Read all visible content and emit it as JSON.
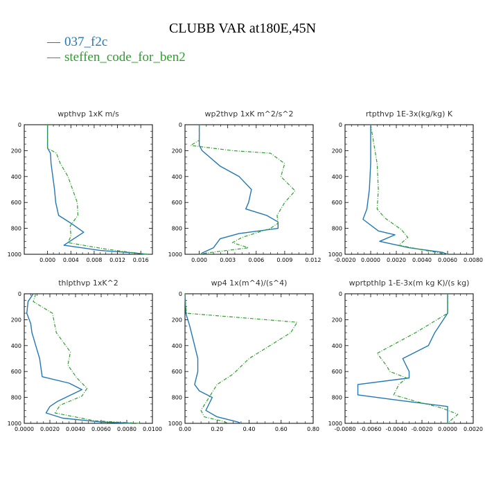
{
  "title": "CLUBB VAR at180E,45N",
  "legend": [
    {
      "label": "037_f2c",
      "color": "#1f77b4"
    },
    {
      "label": "steffen_code_for_ben2",
      "color": "#2ca02c"
    }
  ],
  "chart_data": [
    {
      "type": "line",
      "title": "wpthvp  1xK m/s",
      "xlim": [
        -0.004,
        0.018
      ],
      "ylim": [
        0,
        1000
      ],
      "y_inverted": true,
      "xticks": [
        0.0,
        0.004,
        0.008,
        0.012,
        0.016
      ],
      "xtick_labels": [
        "0.000",
        "0.004",
        "0.008",
        "0.012",
        "0.016"
      ],
      "yticks": [
        0,
        200,
        400,
        600,
        800,
        1000
      ],
      "ytick_labels": [
        "0",
        "200",
        "400",
        "600",
        "800",
        "1000"
      ],
      "series": [
        {
          "name": "037_f2c",
          "points": [
            [
              0.0,
              0
            ],
            [
              0.0,
              180
            ],
            [
              0.0005,
              220
            ],
            [
              0.0006,
              300
            ],
            [
              0.0009,
              400
            ],
            [
              0.0012,
              500
            ],
            [
              0.0014,
              600
            ],
            [
              0.0019,
              700
            ],
            [
              0.004,
              760
            ],
            [
              0.0062,
              830
            ],
            [
              0.0045,
              880
            ],
            [
              0.0028,
              930
            ],
            [
              0.009,
              970
            ],
            [
              0.015,
              990
            ],
            [
              0.017,
              1000
            ]
          ]
        },
        {
          "name": "steffen_code_for_ben2",
          "points": [
            [
              0.0,
              0
            ],
            [
              0.0,
              180
            ],
            [
              0.0015,
              220
            ],
            [
              0.0022,
              300
            ],
            [
              0.0035,
              400
            ],
            [
              0.0043,
              500
            ],
            [
              0.0051,
              600
            ],
            [
              0.0052,
              700
            ],
            [
              0.0039,
              780
            ],
            [
              0.004,
              860
            ],
            [
              0.0035,
              910
            ],
            [
              0.01,
              960
            ],
            [
              0.016,
              995
            ],
            [
              0.0175,
              1000
            ]
          ]
        }
      ]
    },
    {
      "type": "line",
      "title": "wp2thvp  1xK m^2/s^2",
      "xlim": [
        -0.0015,
        0.012
      ],
      "ylim": [
        0,
        1000
      ],
      "y_inverted": true,
      "xticks": [
        0.0,
        0.003,
        0.006,
        0.009,
        0.012
      ],
      "xtick_labels": [
        "0.000",
        "0.003",
        "0.006",
        "0.009",
        "0.012"
      ],
      "yticks": [
        0,
        200,
        400,
        600,
        800,
        1000
      ],
      "ytick_labels": [
        "0",
        "200",
        "400",
        "600",
        "800",
        "1000"
      ],
      "series": [
        {
          "name": "037_f2c",
          "points": [
            [
              0.0,
              0
            ],
            [
              0.0,
              160
            ],
            [
              0.0003,
              200
            ],
            [
              0.0022,
              320
            ],
            [
              0.0042,
              400
            ],
            [
              0.0055,
              500
            ],
            [
              0.0052,
              600
            ],
            [
              0.0049,
              650
            ],
            [
              0.0071,
              700
            ],
            [
              0.0083,
              750
            ],
            [
              0.0083,
              800
            ],
            [
              0.0042,
              840
            ],
            [
              0.0022,
              880
            ],
            [
              0.0015,
              950
            ],
            [
              0.0003,
              990
            ],
            [
              0.0002,
              1000
            ]
          ]
        },
        {
          "name": "steffen_code_for_ben2",
          "points": [
            [
              0.0,
              0
            ],
            [
              0.0,
              120
            ],
            [
              -0.0009,
              160
            ],
            [
              0.0035,
              200
            ],
            [
              0.0075,
              220
            ],
            [
              0.009,
              300
            ],
            [
              0.0086,
              400
            ],
            [
              0.0101,
              510
            ],
            [
              0.009,
              600
            ],
            [
              0.0082,
              700
            ],
            [
              0.0083,
              760
            ],
            [
              0.0075,
              800
            ],
            [
              0.0045,
              870
            ],
            [
              0.0035,
              910
            ],
            [
              0.0052,
              950
            ],
            [
              0.0008,
              990
            ],
            [
              0.0,
              1000
            ]
          ]
        }
      ]
    },
    {
      "type": "line",
      "title": "rtpthvp  1E-3x(kg/kg) K",
      "xlim": [
        -0.002,
        0.008
      ],
      "ylim": [
        0,
        1000
      ],
      "y_inverted": true,
      "xticks": [
        -0.002,
        0.0,
        0.002,
        0.004,
        0.006,
        0.008
      ],
      "xtick_labels": [
        "-0.0020",
        "0.0000",
        "0.0020",
        "0.0040",
        "0.0060",
        "0.0080"
      ],
      "yticks": [
        0,
        200,
        400,
        600,
        800,
        1000
      ],
      "ytick_labels": [
        "0",
        "200",
        "400",
        "600",
        "800",
        "1000"
      ],
      "series": [
        {
          "name": "037_f2c",
          "points": [
            [
              0.0,
              0
            ],
            [
              0.0,
              300
            ],
            [
              -0.0001,
              500
            ],
            [
              -0.0003,
              650
            ],
            [
              -0.0006,
              730
            ],
            [
              0.0006,
              820
            ],
            [
              0.0019,
              850
            ],
            [
              0.0007,
              900
            ],
            [
              0.003,
              950
            ],
            [
              0.0056,
              985
            ],
            [
              0.006,
              1000
            ]
          ]
        },
        {
          "name": "steffen_code_for_ben2",
          "points": [
            [
              0.0,
              0
            ],
            [
              0.0005,
              300
            ],
            [
              0.0006,
              500
            ],
            [
              0.0005,
              650
            ],
            [
              0.0011,
              720
            ],
            [
              0.0024,
              810
            ],
            [
              0.0029,
              870
            ],
            [
              0.0022,
              930
            ],
            [
              0.0045,
              975
            ],
            [
              0.006,
              1000
            ]
          ]
        }
      ]
    },
    {
      "type": "line",
      "title": "thlpthvp  1xK^2",
      "xlim": [
        0.0,
        0.01
      ],
      "ylim": [
        0,
        1000
      ],
      "y_inverted": true,
      "xticks": [
        0.0,
        0.002,
        0.004,
        0.006,
        0.008,
        0.01
      ],
      "xtick_labels": [
        "0.0000",
        "0.0020",
        "0.0040",
        "0.0060",
        "0.0080",
        "0.0100"
      ],
      "yticks": [
        0,
        200,
        400,
        600,
        800,
        1000
      ],
      "ytick_labels": [
        "0",
        "200",
        "400",
        "600",
        "800",
        "1000"
      ],
      "series": [
        {
          "name": "037_f2c",
          "points": [
            [
              0.0007,
              0
            ],
            [
              0.0003,
              60
            ],
            [
              0.0002,
              150
            ],
            [
              0.0005,
              230
            ],
            [
              0.0006,
              300
            ],
            [
              0.0009,
              400
            ],
            [
              0.0012,
              500
            ],
            [
              0.0014,
              640
            ],
            [
              0.0035,
              690
            ],
            [
              0.0045,
              740
            ],
            [
              0.0026,
              830
            ],
            [
              0.002,
              870
            ],
            [
              0.0017,
              920
            ],
            [
              0.003,
              960
            ],
            [
              0.006,
              990
            ],
            [
              0.0085,
              1000
            ]
          ]
        },
        {
          "name": "steffen_code_for_ben2",
          "points": [
            [
              0.0009,
              0
            ],
            [
              0.0007,
              60
            ],
            [
              0.0022,
              150
            ],
            [
              0.0025,
              300
            ],
            [
              0.0036,
              450
            ],
            [
              0.0034,
              550
            ],
            [
              0.0041,
              650
            ],
            [
              0.0049,
              730
            ],
            [
              0.0045,
              790
            ],
            [
              0.0028,
              860
            ],
            [
              0.0024,
              920
            ],
            [
              0.0055,
              980
            ],
            [
              0.009,
              1000
            ]
          ]
        }
      ]
    },
    {
      "type": "line",
      "title": "wp4  1x(m^4)/(s^4)",
      "xlim": [
        0.0,
        0.8
      ],
      "ylim": [
        0,
        1000
      ],
      "y_inverted": true,
      "xticks": [
        0.0,
        0.2,
        0.4,
        0.6,
        0.8
      ],
      "xtick_labels": [
        "0.00",
        "0.20",
        "0.40",
        "0.60",
        "0.80"
      ],
      "yticks": [
        0,
        200,
        400,
        600,
        800,
        1000
      ],
      "ytick_labels": [
        "0",
        "200",
        "400",
        "600",
        "800",
        "1000"
      ],
      "series": [
        {
          "name": "037_f2c",
          "points": [
            [
              0.0,
              0
            ],
            [
              0.005,
              150
            ],
            [
              0.03,
              250
            ],
            [
              0.06,
              400
            ],
            [
              0.08,
              500
            ],
            [
              0.08,
              600
            ],
            [
              0.06,
              700
            ],
            [
              0.09,
              750
            ],
            [
              0.17,
              800
            ],
            [
              0.15,
              850
            ],
            [
              0.13,
              900
            ],
            [
              0.2,
              950
            ],
            [
              0.33,
              990
            ],
            [
              0.35,
              1000
            ]
          ]
        },
        {
          "name": "steffen_code_for_ben2",
          "points": [
            [
              0.0,
              0
            ],
            [
              0.005,
              100
            ],
            [
              0.01,
              150
            ],
            [
              0.7,
              220
            ],
            [
              0.66,
              300
            ],
            [
              0.53,
              400
            ],
            [
              0.4,
              500
            ],
            [
              0.3,
              620
            ],
            [
              0.2,
              700
            ],
            [
              0.15,
              800
            ],
            [
              0.1,
              900
            ],
            [
              0.12,
              950
            ],
            [
              0.24,
              985
            ],
            [
              0.27,
              1000
            ]
          ]
        }
      ]
    },
    {
      "type": "line",
      "title": "wprtpthlp  1-E-3x(m kg K)/(s kg)",
      "xlim": [
        -0.008,
        0.002
      ],
      "ylim": [
        0,
        1000
      ],
      "y_inverted": true,
      "xticks": [
        -0.008,
        -0.006,
        -0.004,
        -0.002,
        0.0,
        0.002
      ],
      "xtick_labels": [
        "-0.0080",
        "-0.0060",
        "-0.0040",
        "-0.0020",
        "0.0000",
        "0.0020"
      ],
      "yticks": [
        0,
        200,
        400,
        600,
        800,
        1000
      ],
      "ytick_labels": [
        "0",
        "200",
        "400",
        "600",
        "800",
        "1000"
      ],
      "series": [
        {
          "name": "037_f2c",
          "points": [
            [
              0.0,
              0
            ],
            [
              0.0,
              150
            ],
            [
              -0.001,
              300
            ],
            [
              -0.0015,
              400
            ],
            [
              -0.0035,
              500
            ],
            [
              -0.003,
              600
            ],
            [
              -0.003,
              650
            ],
            [
              -0.007,
              700
            ],
            [
              -0.007,
              780
            ],
            [
              -0.004,
              820
            ],
            [
              0.0,
              870
            ],
            [
              0.0,
              1000
            ]
          ]
        },
        {
          "name": "steffen_code_for_ben2",
          "points": [
            [
              0.0,
              0
            ],
            [
              0.0,
              150
            ],
            [
              -0.0025,
              300
            ],
            [
              -0.0055,
              460
            ],
            [
              -0.0048,
              550
            ],
            [
              -0.0045,
              600
            ],
            [
              -0.0032,
              650
            ],
            [
              -0.0038,
              700
            ],
            [
              -0.0042,
              780
            ],
            [
              -0.0025,
              830
            ],
            [
              -0.0005,
              880
            ],
            [
              0.0008,
              930
            ],
            [
              0.0001,
              990
            ],
            [
              0.0,
              1000
            ]
          ]
        }
      ]
    }
  ]
}
